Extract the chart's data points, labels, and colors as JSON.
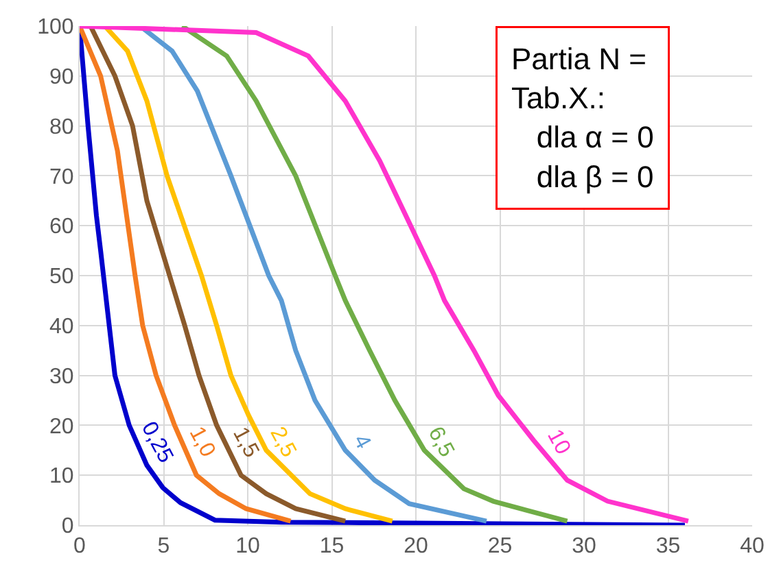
{
  "chart_data": {
    "type": "line",
    "annotations": [
      "Partia N =",
      "Tab.X.:",
      "dla α = 0",
      "dla β = 0"
    ],
    "xlim": [
      0,
      40
    ],
    "xticks": [
      0,
      5,
      10,
      15,
      20,
      25,
      30,
      35,
      40
    ],
    "ylim": [
      0,
      100
    ],
    "yticks": [
      0,
      10,
      20,
      30,
      40,
      50,
      60,
      70,
      80,
      90,
      100
    ],
    "grid": true,
    "legend": false,
    "marker": "none",
    "line_style": "solid",
    "series": [
      {
        "name": "0,25",
        "color": "#0000cc",
        "x": [
          0,
          0.5,
          1,
          1.25,
          2.1,
          2.95,
          4,
          4.95,
          6,
          8.05,
          12,
          20,
          36
        ],
        "values": [
          100,
          80,
          62,
          55,
          30,
          20,
          12,
          7.5,
          4.5,
          1,
          0.6,
          0.4,
          0
        ]
      },
      {
        "name": "1,0",
        "color": "#f47b20",
        "x": [
          0,
          1.25,
          2.25,
          3.3,
          3.75,
          4.55,
          5.65,
          6.95,
          8.3,
          9.9,
          12.55
        ],
        "values": [
          100,
          90,
          75,
          50,
          40,
          30,
          20,
          10,
          6.3,
          3.3,
          0.8
        ]
      },
      {
        "name": "1,5",
        "color": "#8b5a2b",
        "x": [
          0.65,
          2.1,
          3.15,
          4.0,
          5.35,
          6.25,
          7.1,
          8.15,
          9.6,
          11.1,
          12.85,
          15.8
        ],
        "values": [
          100,
          90,
          80,
          65,
          50,
          40,
          30,
          20,
          10,
          6.3,
          3.3,
          0.8
        ]
      },
      {
        "name": "2,5",
        "color": "#ffc000",
        "x": [
          1.5,
          2.85,
          4.0,
          5.2,
          7.25,
          8.15,
          9.0,
          10.05,
          11.1,
          13.7,
          15.8,
          18.6
        ],
        "values": [
          100,
          95,
          85,
          70,
          50,
          40,
          30,
          22,
          15,
          6.3,
          3.3,
          0.8
        ]
      },
      {
        "name": "4",
        "color": "#5b9bd5",
        "x": [
          3.6,
          5.5,
          7.0,
          9.0,
          11.25,
          12.0,
          12.85,
          14.0,
          15.8,
          17.55,
          19.6,
          24.2
        ],
        "values": [
          100,
          95,
          87,
          70,
          50,
          45,
          35,
          25,
          15,
          9,
          4.3,
          0.8
        ]
      },
      {
        "name": "6,5",
        "color": "#70ad47",
        "x": [
          6.1,
          8.75,
          10.5,
          12.85,
          15.2,
          15.8,
          17.25,
          18.75,
          20.5,
          22.85,
          24.6,
          29.0
        ],
        "values": [
          100,
          94,
          85,
          70,
          50,
          45,
          35,
          25,
          15,
          7.3,
          4.8,
          0.8
        ]
      },
      {
        "name": "10",
        "color": "#ff33cc",
        "x": [
          0,
          10.5,
          13.6,
          15.8,
          17.85,
          21.1,
          21.7,
          23.45,
          24.9,
          27.0,
          29.0,
          31.4,
          36.2
        ],
        "values": [
          100,
          98.7,
          94,
          85,
          73,
          50,
          45,
          35,
          26,
          17,
          9,
          4.8,
          0.8
        ]
      }
    ]
  }
}
